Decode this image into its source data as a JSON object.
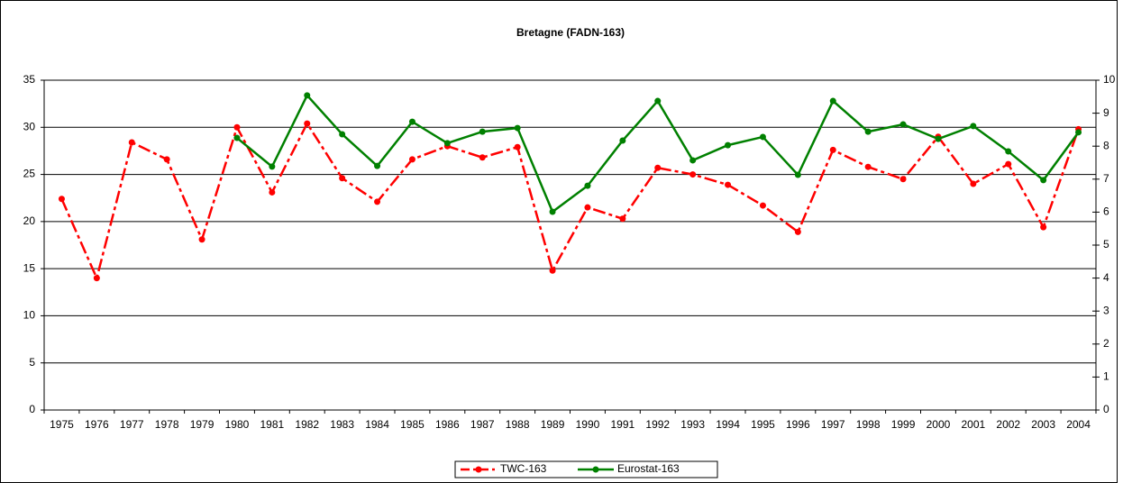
{
  "chart_data": {
    "type": "line",
    "title": "Bretagne (FADN-163)",
    "categories": [
      "1975",
      "1976",
      "1977",
      "1978",
      "1979",
      "1980",
      "1981",
      "1982",
      "1983",
      "1984",
      "1985",
      "1986",
      "1987",
      "1988",
      "1989",
      "1990",
      "1991",
      "1992",
      "1993",
      "1994",
      "1995",
      "1996",
      "1997",
      "1998",
      "1999",
      "2000",
      "2001",
      "2002",
      "2003",
      "2004"
    ],
    "series": [
      {
        "name": "TWC-163",
        "color": "#ff0000",
        "values": [
          22.4,
          14.0,
          28.4,
          26.6,
          18.1,
          30.0,
          23.1,
          30.4,
          24.6,
          22.1,
          26.6,
          28.0,
          26.8,
          27.9,
          14.8,
          21.5,
          20.3,
          25.7,
          25.0,
          23.9,
          21.7,
          18.9,
          27.6,
          25.8,
          24.5,
          29.0,
          24.0,
          26.1,
          19.4,
          29.8
        ]
      },
      {
        "name": "Eurostat-163",
        "color": "#008000",
        "axis": "y2",
        "values": [
          null,
          null,
          null,
          null,
          null,
          8.25,
          7.38,
          9.54,
          8.36,
          7.4,
          8.74,
          8.09,
          8.44,
          8.55,
          6.01,
          6.8,
          8.17,
          9.37,
          7.57,
          8.03,
          8.28,
          7.13,
          9.37,
          8.44,
          8.66,
          8.22,
          8.61,
          7.84,
          6.97,
          8.42
        ]
      }
    ],
    "ylim": [
      0,
      35
    ],
    "yticks": [
      0,
      5,
      10,
      15,
      20,
      25,
      30,
      35
    ],
    "y2lim": [
      0,
      10
    ],
    "y2ticks": [
      0,
      1,
      2,
      3,
      4,
      5,
      6,
      7,
      8,
      9,
      10
    ],
    "grid": true,
    "legend": "bottom"
  }
}
